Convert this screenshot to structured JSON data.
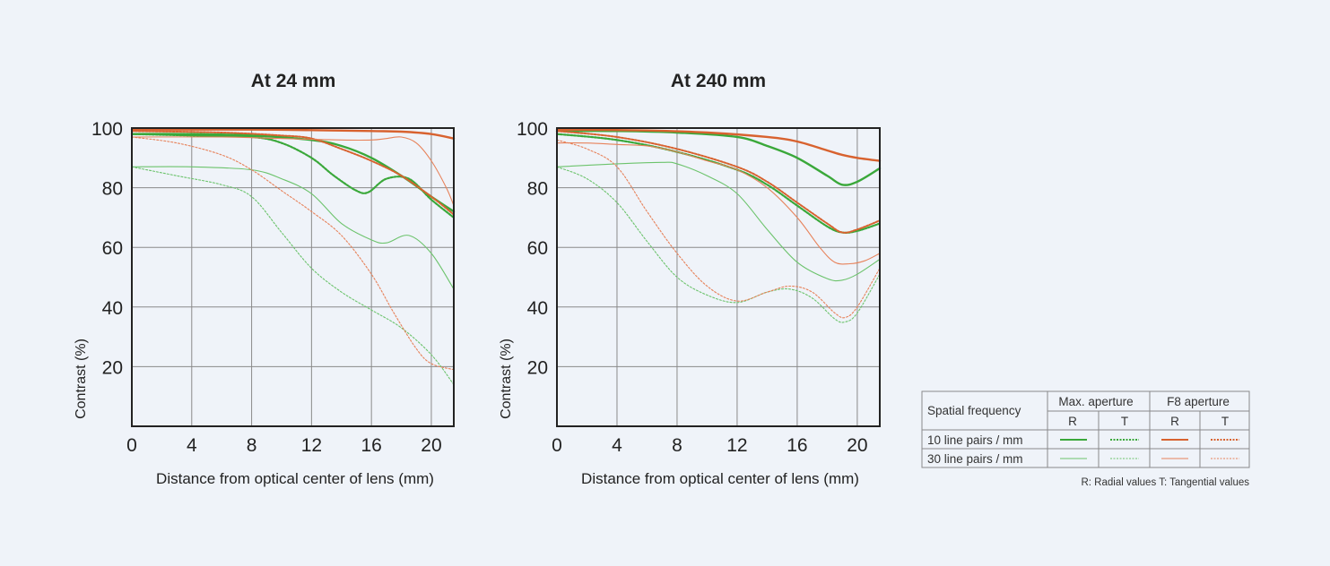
{
  "chart_data": [
    {
      "type": "line",
      "title": "At 24 mm",
      "xlabel": "Distance from optical center of lens (mm)",
      "ylabel": "Contrast (%)",
      "xlim": [
        0,
        21.5
      ],
      "ylim": [
        0,
        100
      ],
      "x_ticks": [
        "0",
        "4",
        "8",
        "12",
        "16",
        "20"
      ],
      "y_ticks": [
        "20",
        "40",
        "60",
        "80",
        "100"
      ],
      "grid": true,
      "series": [
        {
          "key": "max_10_R",
          "points": [
            [
              0,
              98
            ],
            [
              4,
              98
            ],
            [
              8,
              97.5
            ],
            [
              12,
              96
            ],
            [
              14,
              94
            ],
            [
              16,
              90
            ],
            [
              18,
              84
            ],
            [
              20,
              77
            ],
            [
              21.5,
              72
            ]
          ]
        },
        {
          "key": "max_10_T",
          "points": [
            [
              0,
              98
            ],
            [
              4,
              97.5
            ],
            [
              8,
              97
            ],
            [
              10,
              95
            ],
            [
              12,
              90
            ],
            [
              13.5,
              84
            ],
            [
              15,
              79
            ],
            [
              15.8,
              78.5
            ],
            [
              17,
              83
            ],
            [
              18.5,
              83
            ],
            [
              20,
              76
            ],
            [
              21.5,
              70
            ]
          ]
        },
        {
          "key": "max_30_R",
          "points": [
            [
              0,
              87
            ],
            [
              4,
              87
            ],
            [
              8,
              86
            ],
            [
              10,
              83
            ],
            [
              12,
              78
            ],
            [
              14,
              68
            ],
            [
              16,
              62.5
            ],
            [
              17,
              61.5
            ],
            [
              18.5,
              64
            ],
            [
              20,
              58
            ],
            [
              21.5,
              46
            ]
          ]
        },
        {
          "key": "max_30_T",
          "points": [
            [
              0,
              87
            ],
            [
              3,
              84
            ],
            [
              6,
              81
            ],
            [
              8,
              77
            ],
            [
              10,
              65
            ],
            [
              12,
              53
            ],
            [
              14,
              45
            ],
            [
              16,
              39
            ],
            [
              18,
              33
            ],
            [
              20,
              24
            ],
            [
              21.5,
              14
            ]
          ]
        },
        {
          "key": "f8_10_R",
          "points": [
            [
              0,
              99.5
            ],
            [
              8,
              99.5
            ],
            [
              12,
              99.3
            ],
            [
              16,
              99
            ],
            [
              18,
              98.8
            ],
            [
              20,
              98
            ],
            [
              21.5,
              96.5
            ]
          ]
        },
        {
          "key": "f8_10_T",
          "points": [
            [
              0,
              99
            ],
            [
              6,
              98.5
            ],
            [
              10,
              97.5
            ],
            [
              12,
              96.5
            ],
            [
              14,
              93
            ],
            [
              16,
              89
            ],
            [
              18,
              84
            ],
            [
              20,
              77
            ],
            [
              21.5,
              71
            ]
          ]
        },
        {
          "key": "f8_30_R",
          "points": [
            [
              0,
              97
            ],
            [
              6,
              97
            ],
            [
              10,
              96.5
            ],
            [
              14,
              96
            ],
            [
              16,
              96
            ],
            [
              17,
              96.5
            ],
            [
              18,
              97
            ],
            [
              19,
              95
            ],
            [
              20,
              89
            ],
            [
              21,
              80
            ],
            [
              21.5,
              74
            ]
          ]
        },
        {
          "key": "f8_30_T",
          "points": [
            [
              0,
              97
            ],
            [
              3,
              95
            ],
            [
              6,
              91
            ],
            [
              8,
              86
            ],
            [
              10,
              79
            ],
            [
              12,
              72
            ],
            [
              14,
              64
            ],
            [
              16,
              51
            ],
            [
              17.5,
              38
            ],
            [
              19,
              26
            ],
            [
              20,
              21
            ],
            [
              21.5,
              19
            ]
          ]
        }
      ]
    },
    {
      "type": "line",
      "title": "At 240 mm",
      "xlabel": "Distance from optical center of lens (mm)",
      "ylabel": "Contrast (%)",
      "xlim": [
        0,
        21.5
      ],
      "ylim": [
        0,
        100
      ],
      "x_ticks": [
        "0",
        "4",
        "8",
        "12",
        "16",
        "20"
      ],
      "y_ticks": [
        "20",
        "40",
        "60",
        "80",
        "100"
      ],
      "grid": true,
      "series": [
        {
          "key": "max_10_R",
          "points": [
            [
              0,
              99
            ],
            [
              4,
              99
            ],
            [
              8,
              98.5
            ],
            [
              12,
              97
            ],
            [
              14,
              94
            ],
            [
              16,
              90
            ],
            [
              18,
              84
            ],
            [
              19,
              81
            ],
            [
              20,
              82
            ],
            [
              21.5,
              86.5
            ]
          ]
        },
        {
          "key": "max_10_T",
          "points": [
            [
              0,
              98
            ],
            [
              4,
              96
            ],
            [
              8,
              92
            ],
            [
              12,
              86
            ],
            [
              14,
              81
            ],
            [
              16,
              74
            ],
            [
              18,
              67
            ],
            [
              19,
              65
            ],
            [
              20,
              65.5
            ],
            [
              21.5,
              68
            ]
          ]
        },
        {
          "key": "max_30_R",
          "points": [
            [
              0,
              87
            ],
            [
              4,
              88
            ],
            [
              7,
              88.5
            ],
            [
              8,
              88
            ],
            [
              10,
              84
            ],
            [
              12,
              78
            ],
            [
              14,
              66
            ],
            [
              16,
              55
            ],
            [
              18,
              49.5
            ],
            [
              19,
              49
            ],
            [
              20,
              51
            ],
            [
              21.5,
              56
            ]
          ]
        },
        {
          "key": "max_30_T",
          "points": [
            [
              0,
              87
            ],
            [
              2,
              83
            ],
            [
              4,
              75
            ],
            [
              6,
              62
            ],
            [
              8,
              50
            ],
            [
              10,
              44
            ],
            [
              12,
              41.5
            ],
            [
              14,
              45
            ],
            [
              15.5,
              46
            ],
            [
              17,
              43
            ],
            [
              18.5,
              36
            ],
            [
              19.2,
              35
            ],
            [
              20,
              38
            ],
            [
              21.5,
              51
            ]
          ]
        },
        {
          "key": "f8_10_R",
          "points": [
            [
              0,
              99.5
            ],
            [
              6,
              99.2
            ],
            [
              10,
              98.5
            ],
            [
              14,
              97
            ],
            [
              16,
              95.5
            ],
            [
              18,
              92.5
            ],
            [
              19,
              91
            ],
            [
              20,
              90
            ],
            [
              21.5,
              89
            ]
          ]
        },
        {
          "key": "f8_10_T",
          "points": [
            [
              0,
              99
            ],
            [
              4,
              97
            ],
            [
              8,
              93
            ],
            [
              12,
              87
            ],
            [
              14,
              82
            ],
            [
              16,
              75
            ],
            [
              18,
              68
            ],
            [
              19,
              65
            ],
            [
              20,
              66
            ],
            [
              21.5,
              69
            ]
          ]
        },
        {
          "key": "f8_30_R",
          "points": [
            [
              0,
              95
            ],
            [
              2,
              95
            ],
            [
              4,
              94.5
            ],
            [
              6,
              94
            ],
            [
              8,
              92
            ],
            [
              10,
              89
            ],
            [
              12,
              86
            ],
            [
              14,
              80
            ],
            [
              16,
              70
            ],
            [
              17.5,
              60
            ],
            [
              18.5,
              55
            ],
            [
              19.5,
              54.5
            ],
            [
              20.5,
              55.5
            ],
            [
              21.5,
              58
            ]
          ]
        },
        {
          "key": "f8_30_T",
          "points": [
            [
              0,
              96
            ],
            [
              2,
              93
            ],
            [
              4,
              87
            ],
            [
              6,
              72
            ],
            [
              8,
              58
            ],
            [
              10,
              47
            ],
            [
              12,
              42
            ],
            [
              14,
              45
            ],
            [
              15.5,
              47
            ],
            [
              17,
              45
            ],
            [
              18.5,
              38
            ],
            [
              19.2,
              36.5
            ],
            [
              20,
              40
            ],
            [
              21.5,
              53
            ]
          ]
        }
      ]
    }
  ],
  "colors": {
    "green_bold": "#3aa83a",
    "green_thin": "#6cc36c",
    "orange_bold": "#d8622f",
    "orange_thin": "#e7825a",
    "grid": "#8a8a8a",
    "axis": "#222222",
    "legend_border": "#8a8a8a"
  },
  "legend": {
    "spatial_frequency": "Spatial frequency",
    "max_aperture": "Max. aperture",
    "f8_aperture": "F8 aperture",
    "r": "R",
    "t": "T",
    "row_10": "10 line pairs / mm",
    "row_30": "30 line pairs / mm",
    "note": "R: Radial values  T: Tangential values"
  }
}
